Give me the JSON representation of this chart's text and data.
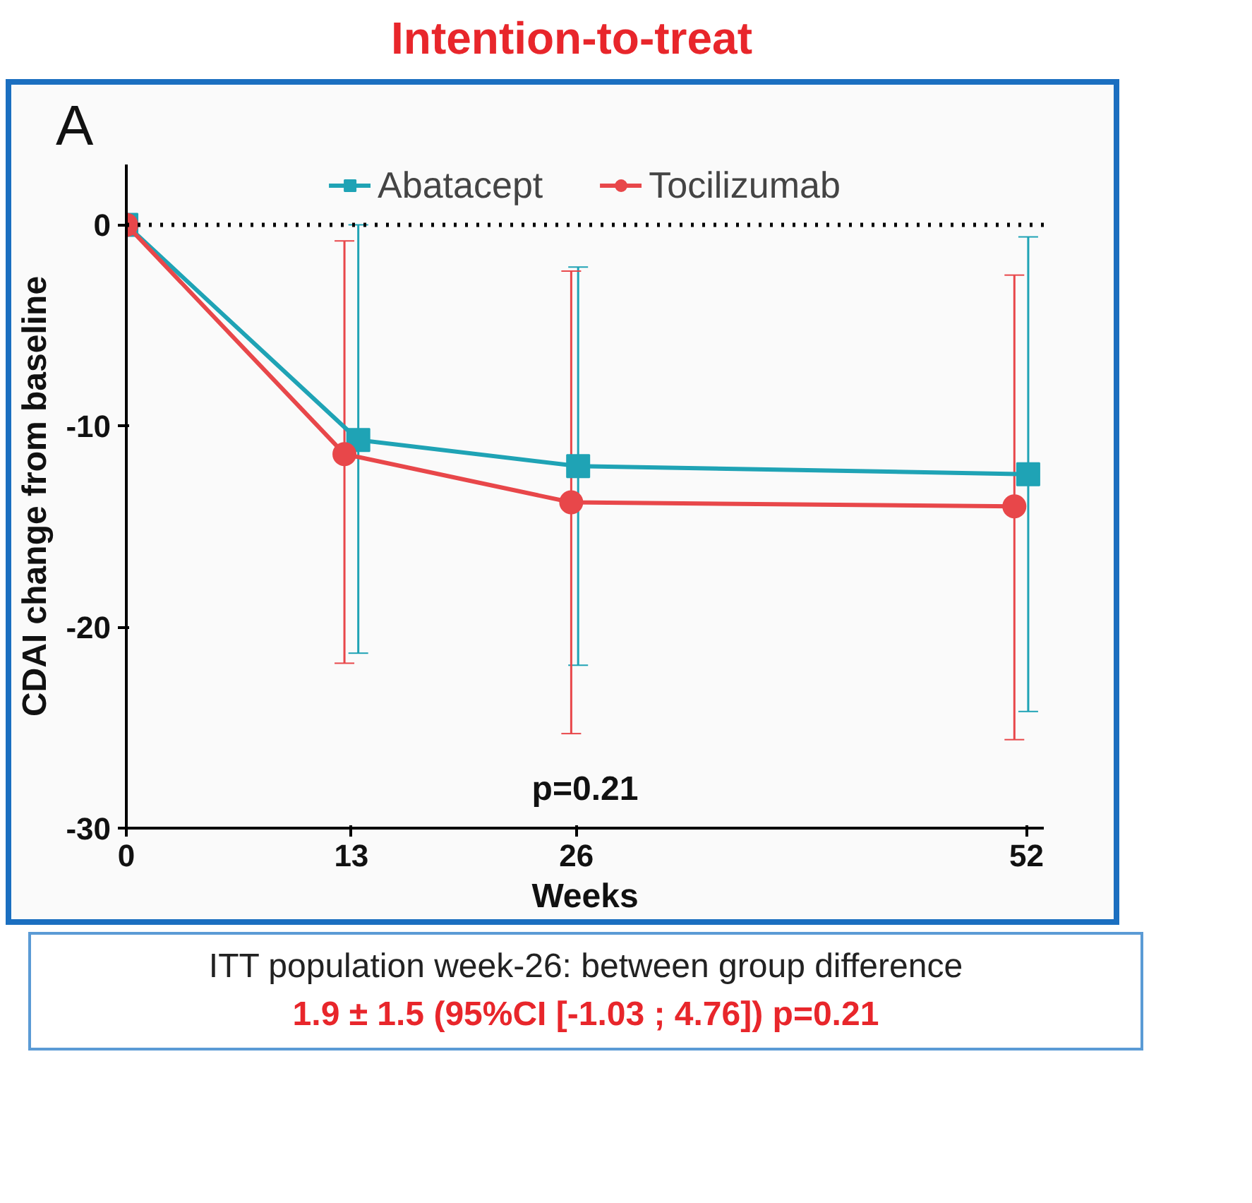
{
  "chart_data": {
    "type": "line",
    "title": "Intention-to-treat",
    "xlabel": "Weeks",
    "ylabel": "CDAI change from baseline",
    "xlim": [
      0,
      53
    ],
    "ylim": [
      -30,
      3
    ],
    "xticks": [
      0,
      13,
      26,
      52
    ],
    "yticks": [
      0,
      -10,
      -20,
      -30
    ],
    "grid": false,
    "legend": "top",
    "ref_lines": [
      {
        "axis": "y",
        "value": 0,
        "label": null,
        "color": "#000000",
        "line_style": "dotted"
      }
    ],
    "annotations": [
      "A",
      "p=0.21",
      "ITT population week-26: between group difference",
      "1.9 ± 1.5 (95%CI [-1.03 ; 4.76]) p=0.21"
    ],
    "series": [
      {
        "name": "Abatacept",
        "color": "#1fa3b5",
        "marker": "square",
        "x": [
          0,
          13.4,
          26.1,
          52.1
        ],
        "values": [
          0,
          -10.7,
          -12.0,
          -12.4
        ],
        "errors": [
          null,
          [
            -21.3,
            0.0
          ],
          [
            -21.9,
            -2.1
          ],
          [
            -24.2,
            -0.6
          ]
        ]
      },
      {
        "name": "Tocilizumab",
        "color": "#e8474a",
        "marker": "circle",
        "x": [
          0,
          12.6,
          25.7,
          51.3
        ],
        "values": [
          0,
          -11.4,
          -13.8,
          -14.0
        ],
        "errors": [
          null,
          [
            -21.8,
            -0.8
          ],
          [
            -25.3,
            -2.3
          ],
          [
            -25.6,
            -2.5
          ]
        ]
      }
    ]
  }
}
